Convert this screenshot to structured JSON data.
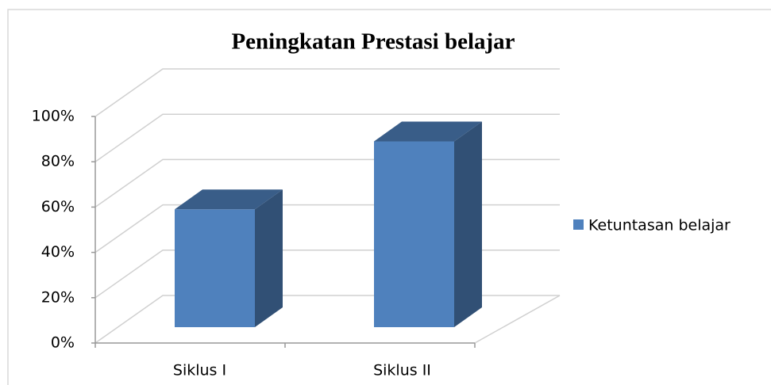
{
  "chart_data": {
    "type": "bar3d",
    "title": "Peningkatan Prestasi belajar",
    "categories": [
      "Siklus I",
      "Siklus II"
    ],
    "series": [
      {
        "name": "Ketuntasan belajar",
        "color": "#4f81bd",
        "values": [
          52,
          82
        ]
      }
    ],
    "ylim": [
      0,
      100
    ],
    "yticks": [
      {
        "value": 0,
        "label": "0%"
      },
      {
        "value": 20,
        "label": "20%"
      },
      {
        "value": 40,
        "label": "40%"
      },
      {
        "value": 60,
        "label": "60%"
      },
      {
        "value": 80,
        "label": "80%"
      },
      {
        "value": 100,
        "label": "100%"
      }
    ],
    "grid": true,
    "legend": "right"
  }
}
